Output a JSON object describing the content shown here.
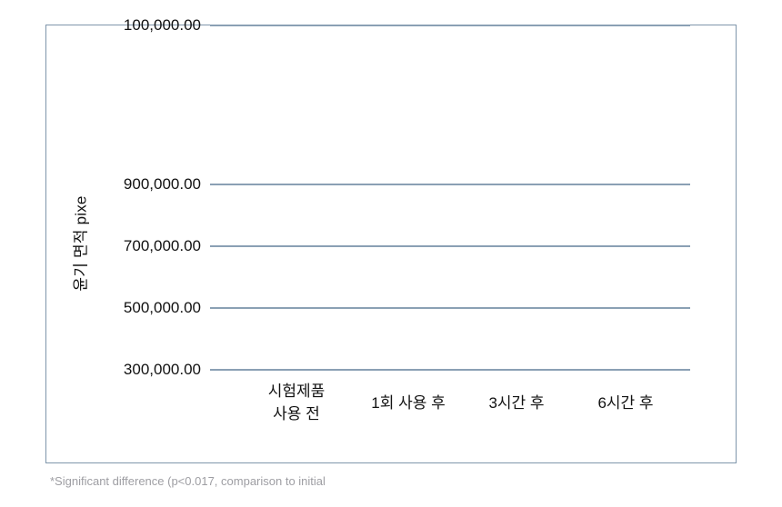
{
  "chart_data": {
    "type": "bar",
    "title": "",
    "xlabel": "",
    "ylabel": "윤기 면적 pixe",
    "categories": [
      "시험제품 사용 전",
      "1회 사용 후",
      "3시간 후",
      "6시간 후"
    ],
    "series": [],
    "y_ticks": {
      "values": [
        900000,
        700000,
        500000,
        300000,
        100000
      ],
      "labels": [
        "900,000.00",
        "700,000.00",
        "500,000.00",
        "300,000.00",
        "100,000.00"
      ]
    },
    "ylim": [
      100000,
      900000
    ],
    "grid": true,
    "legend": false,
    "annotation": "*Significant difference (p<0.017, comparison to initial"
  },
  "x_axis": {
    "labels": [
      {
        "lines": [
          "시험제품",
          "사용 전"
        ]
      },
      {
        "lines": [
          "1회 사용 후"
        ]
      },
      {
        "lines": [
          "3시간 후"
        ]
      },
      {
        "lines": [
          "6시간 후"
        ]
      }
    ]
  },
  "footnote": "*Significant difference (p<0.017, comparison to initial",
  "colors": {
    "grid": "#8aa0b4",
    "border": "#7f96ab",
    "text": "#121212",
    "footnote": "#9e9ea3"
  }
}
